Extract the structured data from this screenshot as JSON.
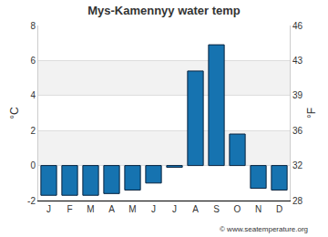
{
  "chart_data": {
    "type": "bar",
    "title": "Mys-Kamennyy water temp",
    "categories": [
      "J",
      "F",
      "M",
      "A",
      "M",
      "J",
      "J",
      "A",
      "S",
      "O",
      "N",
      "D"
    ],
    "values": [
      -1.7,
      -1.7,
      -1.7,
      -1.6,
      -1.4,
      -1.0,
      -0.1,
      5.4,
      6.9,
      1.8,
      -1.3,
      -1.4
    ],
    "color": "#1673b0",
    "y_label": "°C",
    "ylim": [
      -2,
      8
    ],
    "yticks": [
      -2,
      0,
      2,
      4,
      6,
      8
    ],
    "y2_label": "°F",
    "y2lim": [
      28.4,
      46.4
    ],
    "y2ticks": [
      {
        "value": 28.4,
        "label": "28"
      },
      32,
      {
        "value": 35.6,
        "label": "36"
      },
      {
        "value": 39.2,
        "label": "39"
      },
      {
        "value": 42.8,
        "label": "43"
      },
      {
        "value": 46.4,
        "label": "46"
      }
    ],
    "grid": true,
    "annotations": [
      "© www.seatemperature.org"
    ]
  }
}
